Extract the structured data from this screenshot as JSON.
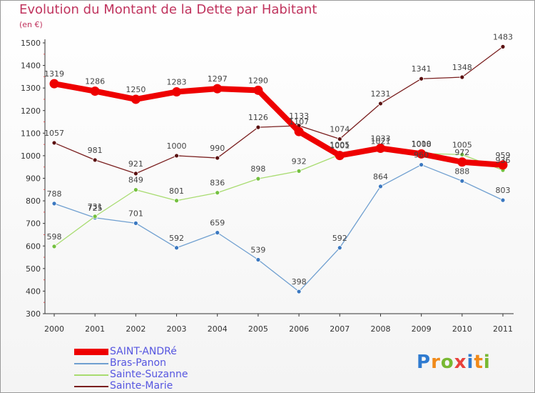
{
  "title": "Evolution du Montant de la Dette par Habitant",
  "subtitle": "(en €)",
  "chart_data": {
    "type": "line",
    "title": "Evolution du Montant de la Dette par Habitant",
    "ylabel": "(en €)",
    "xlabel": "",
    "ylim": [
      300,
      1500
    ],
    "yticks": [
      300,
      400,
      500,
      600,
      700,
      800,
      900,
      1000,
      1100,
      1200,
      1300,
      1400,
      1500
    ],
    "categories": [
      "2000",
      "2001",
      "2002",
      "2003",
      "2004",
      "2005",
      "2006",
      "2007",
      "2008",
      "2009",
      "2010",
      "2011"
    ],
    "grid": false,
    "legend_position": "bottom-left",
    "series": [
      {
        "name": "Sainte-Marie",
        "color": "#7a1f1f",
        "marker": "#5a1010",
        "values": [
          1057,
          981,
          921,
          1000,
          990,
          1126,
          1133,
          1074,
          1231,
          1341,
          1348,
          1483
        ]
      },
      {
        "name": "Bras-Panon",
        "color": "#6f9fd0",
        "marker": "#3b78c0",
        "values": [
          788,
          725,
          701,
          592,
          659,
          539,
          398,
          592,
          864,
          960,
          888,
          803
        ]
      },
      {
        "name": "Sainte-Suzanne",
        "color": "#a8dc70",
        "marker": "#74c040",
        "values": [
          598,
          731,
          849,
          801,
          836,
          898,
          932,
          1005,
          1021,
          1010,
          1005,
          936
        ]
      },
      {
        "name": "SAINT-ANDRé",
        "color": "#ee0000",
        "marker": "#ee0000",
        "values": [
          1319,
          1286,
          1250,
          1283,
          1297,
          1290,
          1107,
          1001,
          1033,
          1008,
          972,
          959
        ]
      }
    ]
  },
  "legend": [
    {
      "name": "SAINT-ANDRé",
      "color": "#ee0000"
    },
    {
      "name": "Bras-Panon",
      "color": "#6f9fd0"
    },
    {
      "name": "Sainte-Suzanne",
      "color": "#a8dc70"
    },
    {
      "name": "Sainte-Marie",
      "color": "#7a1f1f"
    }
  ],
  "logo": {
    "letters": [
      "P",
      "r",
      "o",
      "x",
      "i",
      "t",
      "i"
    ],
    "colors": [
      "#2f7bd0",
      "#f08a1a",
      "#78b832",
      "#e8423c",
      "#2f7bd0",
      "#f08a1a",
      "#78b832"
    ]
  }
}
